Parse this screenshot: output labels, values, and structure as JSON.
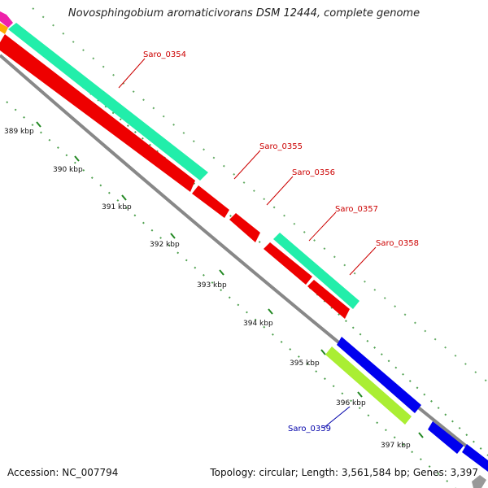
{
  "title": "Novosphingobium aromaticivorans DSM 12444, complete genome",
  "footer": {
    "accession": "Accession: NC_007794",
    "topology": "Topology: circular; Length: 3,561,584 bp; Genes: 3,397"
  },
  "ticks": [
    "389 kbp",
    "390 kbp",
    "391 kbp",
    "392 kbp",
    "393 kbp",
    "394 kbp",
    "395 kbp",
    "396 kbp",
    "397 kbp"
  ],
  "genes": [
    {
      "id": "Saro_0354",
      "color": "#cc0000"
    },
    {
      "id": "Saro_0355",
      "color": "#cc0000"
    },
    {
      "id": "Saro_0356",
      "color": "#cc0000"
    },
    {
      "id": "Saro_0357",
      "color": "#cc0000"
    },
    {
      "id": "Saro_0358",
      "color": "#cc0000"
    },
    {
      "id": "Saro_0359",
      "color": "#0000aa"
    }
  ],
  "colors": {
    "cds_red": "#ee0000",
    "cds_teal": "#22eeaa",
    "cds_blue": "#0000ee",
    "cds_lime": "#aaee33",
    "backbone": "#888888",
    "ticks": "#228822",
    "magenta": "#ee22aa",
    "orange": "#ffaa00"
  }
}
